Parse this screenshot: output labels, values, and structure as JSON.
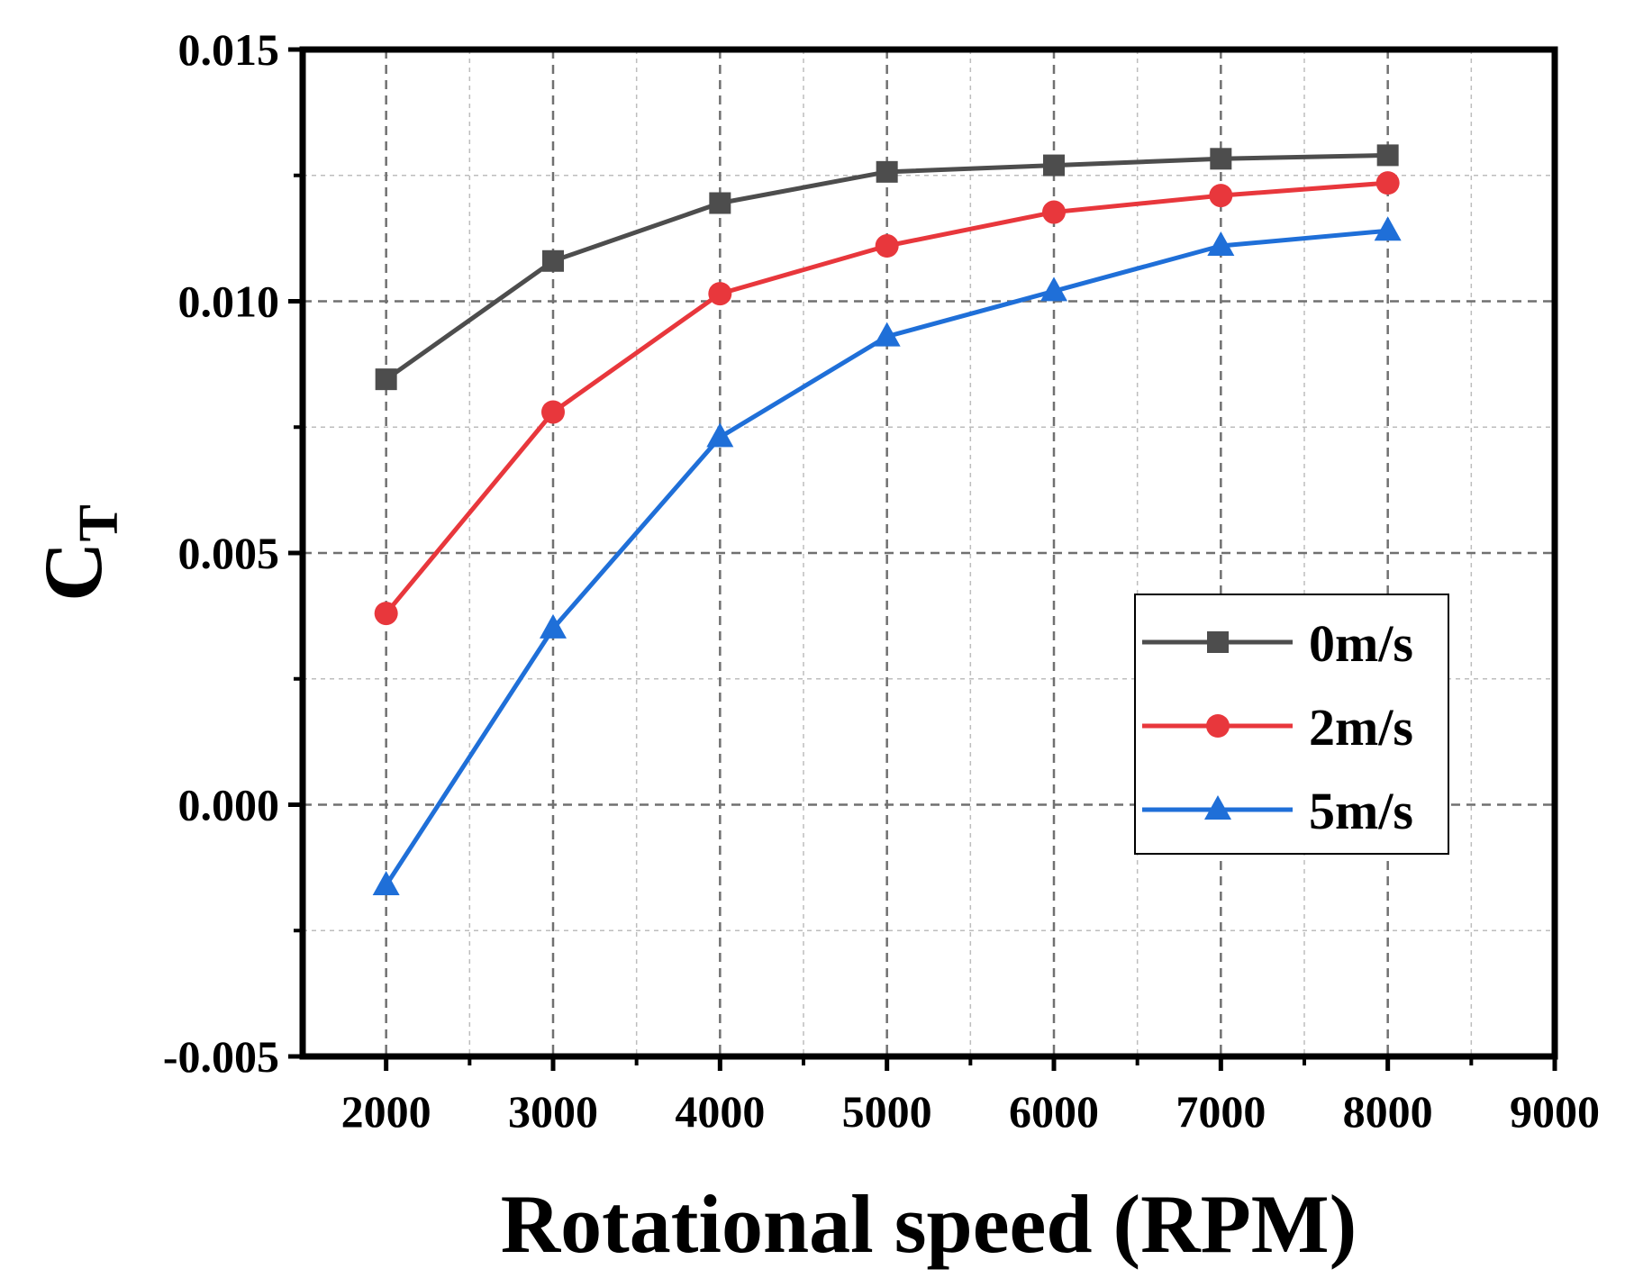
{
  "chart_data": {
    "type": "line",
    "title": "",
    "xlabel": "Rotational speed (RPM)",
    "ylabel": {
      "main": "C",
      "sub": "T"
    },
    "xlim": [
      1500,
      9000
    ],
    "ylim": [
      -0.005,
      0.015
    ],
    "xticks": [
      2000,
      3000,
      4000,
      5000,
      6000,
      7000,
      8000,
      9000
    ],
    "xtick_labels": [
      "2000",
      "3000",
      "4000",
      "5000",
      "6000",
      "7000",
      "8000",
      "9000"
    ],
    "yticks": [
      -0.005,
      0.0,
      0.005,
      0.01,
      0.015
    ],
    "ytick_labels": [
      "-0.005",
      "0.000",
      "0.005",
      "0.010",
      "0.015"
    ],
    "grid": true,
    "legend_position": "center-right",
    "x": [
      2000,
      3000,
      4000,
      5000,
      6000,
      7000,
      8000
    ],
    "series": [
      {
        "name": "0m/s",
        "color": "#4d4d4d",
        "marker": "square",
        "values": [
          0.00845,
          0.0108,
          0.01195,
          0.01257,
          0.0127,
          0.01283,
          0.0129
        ]
      },
      {
        "name": "2m/s",
        "color": "#e8373c",
        "marker": "circle",
        "values": [
          0.0038,
          0.0078,
          0.01015,
          0.0111,
          0.01177,
          0.0121,
          0.01235
        ]
      },
      {
        "name": "5m/s",
        "color": "#1f6fd8",
        "marker": "triangle",
        "values": [
          -0.0016,
          0.0035,
          0.0073,
          0.0093,
          0.0102,
          0.0111,
          0.0114
        ]
      }
    ]
  }
}
